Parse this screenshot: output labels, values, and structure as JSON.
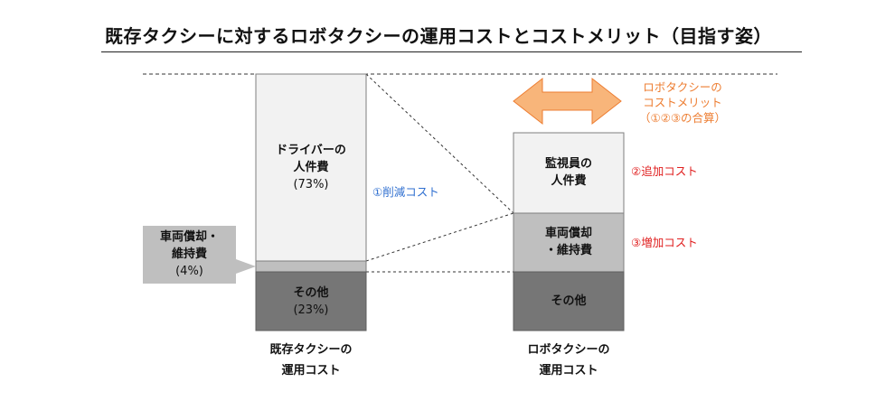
{
  "title": "既存タクシーに対するロボタクシーの運用コストとコストメリット（目指す姿）",
  "colors": {
    "driver": "#f2f2f2",
    "vehicle": "#bfbfbf",
    "other": "#767676",
    "merit_arrow": "#f8b57a",
    "merit_text": "#ed7d31",
    "reduction_text": "#2f6fd0",
    "added_text": "#e02020"
  },
  "existing_bar": {
    "driver_line1": "ドライバーの",
    "driver_line2": "人件費",
    "driver_pct": "(73%)",
    "other_label": "その他",
    "other_pct": "(23%)",
    "axis_line1": "既存タクシーの",
    "axis_line2": "運用コスト"
  },
  "vehicle_callout": {
    "line1": "車両償却・",
    "line2": "維持費",
    "pct": "(4%)"
  },
  "robo_bar": {
    "monitor_line1": "監視員の",
    "monitor_line2": "人件費",
    "vehicle_line1": "車両償却",
    "vehicle_line2": "・維持費",
    "other_label": "その他",
    "axis_line1": "ロボタクシーの",
    "axis_line2": "運用コスト"
  },
  "annotations": {
    "reduction": "①削減コスト",
    "added": "②追加コスト",
    "increased": "③増加コスト",
    "merit_line1": "ロボタクシーの",
    "merit_line2": "コストメリット",
    "merit_line3": "（①②③の合算）"
  }
}
